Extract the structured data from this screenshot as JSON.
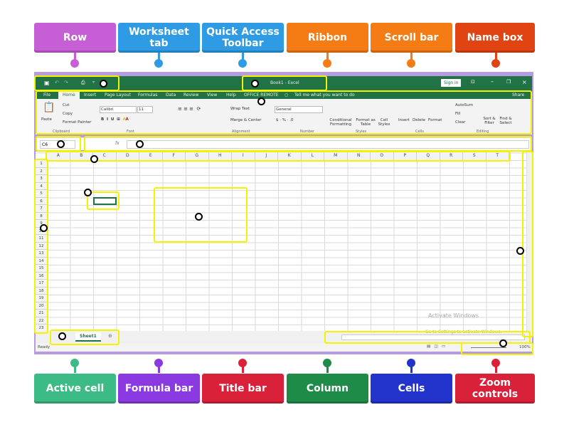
{
  "top_labels": [
    {
      "text": "Row",
      "color": "#c65fd6"
    },
    {
      "text": "Worksheet tab",
      "color": "#2e9be4"
    },
    {
      "text": "Quick Access Toolbar",
      "color": "#2e9be4"
    },
    {
      "text": "Ribbon",
      "color": "#f57c14"
    },
    {
      "text": "Scroll bar",
      "color": "#f57c14"
    },
    {
      "text": "Name box",
      "color": "#e04412"
    }
  ],
  "bottom_labels": [
    {
      "text": "Active cell",
      "color": "#3dbb86"
    },
    {
      "text": "Formula bar",
      "color": "#8a3ae0"
    },
    {
      "text": "Title bar",
      "color": "#d9223a"
    },
    {
      "text": "Column",
      "color": "#1f8b48"
    },
    {
      "text": "Cells",
      "color": "#2234cc"
    },
    {
      "text": "Zoom controls",
      "color": "#d9223a"
    }
  ],
  "excel": {
    "title": "Book1 - Excel",
    "sign_in": "Sign in",
    "tabs": [
      "File",
      "Home",
      "Insert",
      "Page Layout",
      "Formulas",
      "Data",
      "Review",
      "View",
      "Help",
      "OFFICE REMOTE"
    ],
    "tell_me": "Tell me what you want to do",
    "share": "Share",
    "ribbon": {
      "paste": "Paste",
      "cut": "Cut",
      "copy": "Copy",
      "format_painter": "Format Painter",
      "clipboard": "Clipboard",
      "font_name": "Calibri",
      "font_size": "11",
      "font": "Font",
      "wrap_text": "Wrap Text",
      "merge_center": "Merge & Center",
      "alignment": "Alignment",
      "number_format": "General",
      "number": "Number",
      "conditional": "Conditional Formatting",
      "format_table": "Format as Table",
      "cell_styles": "Cell Styles",
      "styles": "Styles",
      "insert": "Insert",
      "delete": "Delete",
      "format": "Format",
      "cells": "Cells",
      "autosum": "AutoSum",
      "fill": "Fill",
      "clear": "Clear",
      "sort_filter": "Sort & Filter",
      "find_select": "Find & Select",
      "editing": "Editing"
    },
    "name_box": "C6",
    "fx": "fx",
    "columns": [
      "A",
      "B",
      "C",
      "D",
      "E",
      "F",
      "G",
      "H",
      "I",
      "J",
      "K",
      "L",
      "M",
      "N",
      "O",
      "P",
      "Q",
      "R",
      "S",
      "T"
    ],
    "rows": [
      "1",
      "2",
      "3",
      "4",
      "5",
      "6",
      "7",
      "8",
      "9",
      "10",
      "11",
      "12",
      "13",
      "14",
      "15",
      "16",
      "17",
      "18",
      "19",
      "20",
      "21",
      "22",
      "23"
    ],
    "sheet_tab": "Sheet1",
    "status": "Ready",
    "zoom": "100%",
    "watermark_1": "Activate Windows",
    "watermark_2": "Go to Settings to activate Windows."
  },
  "accent": "#217346",
  "highlight": "#f3f300"
}
